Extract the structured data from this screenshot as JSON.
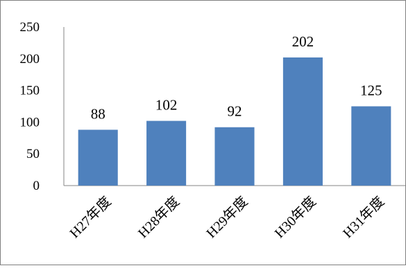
{
  "chart_data": {
    "type": "bar",
    "categories": [
      "H27年度",
      "H28年度",
      "H29年度",
      "H30年度",
      "H31年度"
    ],
    "values": [
      88,
      102,
      92,
      202,
      125
    ],
    "data_labels": [
      "88",
      "102",
      "92",
      "202",
      "125"
    ],
    "y_ticks": [
      "0",
      "50",
      "100",
      "150",
      "200",
      "250"
    ],
    "ylim": [
      0,
      250
    ],
    "title": "",
    "xlabel": "",
    "ylabel": "",
    "grid": false,
    "legend": "none",
    "bar_color": "#4F81BD",
    "axis_color": "#868686"
  }
}
